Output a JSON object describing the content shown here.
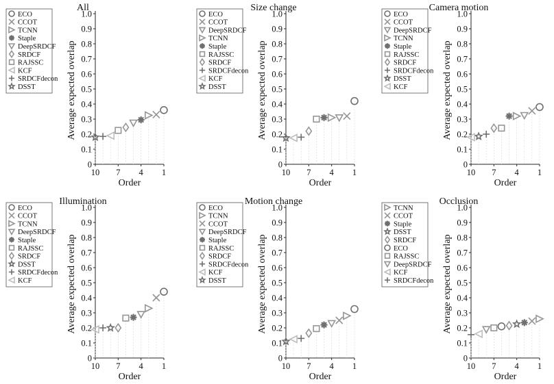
{
  "chart_data": [
    {
      "type": "scatter",
      "title": "All",
      "xlabel": "Order",
      "ylabel": "Average expected overlap",
      "ylim": [
        0,
        1
      ],
      "xlim": [
        10,
        1
      ],
      "xticks": [
        "10",
        "7",
        "4",
        "1"
      ],
      "yticks": [
        "0",
        "0.1",
        "0.2",
        "0.3",
        "0.4",
        "0.5",
        "0.6",
        "0.7",
        "0.8",
        "0.9",
        "1.0"
      ],
      "series": [
        {
          "name": "ECO",
          "marker": "circle",
          "shade": "dark",
          "x": 1,
          "y": 0.36
        },
        {
          "name": "CCOT",
          "marker": "x",
          "shade": "medium",
          "x": 2,
          "y": 0.33
        },
        {
          "name": "TCNN",
          "marker": "tri-right",
          "shade": "medium",
          "x": 3,
          "y": 0.325
        },
        {
          "name": "Staple",
          "marker": "asterisk",
          "shade": "dark",
          "x": 4,
          "y": 0.295
        },
        {
          "name": "DeepSRDCF",
          "marker": "tri-down",
          "shade": "medium",
          "x": 5,
          "y": 0.275
        },
        {
          "name": "SRDCF",
          "marker": "diamond",
          "shade": "medium",
          "x": 6,
          "y": 0.245
        },
        {
          "name": "RAJSSC",
          "marker": "square",
          "shade": "medium",
          "x": 7,
          "y": 0.225
        },
        {
          "name": "KCF",
          "marker": "tri-left",
          "shade": "light",
          "x": 8,
          "y": 0.19
        },
        {
          "name": "SRDCFdecon",
          "marker": "plus",
          "shade": "dark",
          "x": 9,
          "y": 0.185
        },
        {
          "name": "DSST",
          "marker": "star",
          "shade": "dark",
          "x": 10,
          "y": 0.18
        }
      ]
    },
    {
      "type": "scatter",
      "title": "Size change",
      "xlabel": "Order",
      "ylabel": "Average expected overlap",
      "ylim": [
        0,
        1
      ],
      "xlim": [
        10,
        1
      ],
      "xticks": [
        "10",
        "7",
        "4",
        "1"
      ],
      "yticks": [
        "0",
        "0.1",
        "0.2",
        "0.3",
        "0.4",
        "0.5",
        "0.6",
        "0.7",
        "0.8",
        "0.9",
        "1.0"
      ],
      "series": [
        {
          "name": "ECO",
          "marker": "circle",
          "shade": "dark",
          "x": 1,
          "y": 0.42
        },
        {
          "name": "CCOT",
          "marker": "x",
          "shade": "medium",
          "x": 2,
          "y": 0.32
        },
        {
          "name": "DeepSRDCF",
          "marker": "tri-down",
          "shade": "medium",
          "x": 3,
          "y": 0.31
        },
        {
          "name": "TCNN",
          "marker": "tri-right",
          "shade": "medium",
          "x": 4,
          "y": 0.31
        },
        {
          "name": "Staple",
          "marker": "asterisk",
          "shade": "dark",
          "x": 5,
          "y": 0.31
        },
        {
          "name": "RAJSSC",
          "marker": "square",
          "shade": "medium",
          "x": 6,
          "y": 0.3
        },
        {
          "name": "SRDCF",
          "marker": "diamond",
          "shade": "medium",
          "x": 7,
          "y": 0.22
        },
        {
          "name": "SRDCFdecon",
          "marker": "plus",
          "shade": "dark",
          "x": 8,
          "y": 0.18
        },
        {
          "name": "KCF",
          "marker": "tri-left",
          "shade": "light",
          "x": 9,
          "y": 0.175
        },
        {
          "name": "DSST",
          "marker": "star",
          "shade": "dark",
          "x": 10,
          "y": 0.175
        }
      ]
    },
    {
      "type": "scatter",
      "title": "Camera motion",
      "xlabel": "Order",
      "ylabel": "Average expected overlap",
      "ylim": [
        0,
        1
      ],
      "xlim": [
        10,
        1
      ],
      "xticks": [
        "10",
        "7",
        "4",
        "1"
      ],
      "yticks": [
        "0",
        "0.1",
        "0.2",
        "0.3",
        "0.4",
        "0.5",
        "0.6",
        "0.7",
        "0.8",
        "0.9",
        "1.0"
      ],
      "series": [
        {
          "name": "ECO",
          "marker": "circle",
          "shade": "dark",
          "x": 1,
          "y": 0.38
        },
        {
          "name": "CCOT",
          "marker": "x",
          "shade": "medium",
          "x": 2,
          "y": 0.355
        },
        {
          "name": "DeepSRDCF",
          "marker": "tri-down",
          "shade": "medium",
          "x": 3,
          "y": 0.325
        },
        {
          "name": "TCNN",
          "marker": "tri-right",
          "shade": "medium",
          "x": 4,
          "y": 0.32
        },
        {
          "name": "Staple",
          "marker": "asterisk",
          "shade": "dark",
          "x": 5,
          "y": 0.32
        },
        {
          "name": "RAJSSC",
          "marker": "square",
          "shade": "medium",
          "x": 6,
          "y": 0.24
        },
        {
          "name": "SRDCF",
          "marker": "diamond",
          "shade": "medium",
          "x": 7,
          "y": 0.24
        },
        {
          "name": "SRDCFdecon",
          "marker": "plus",
          "shade": "dark",
          "x": 8,
          "y": 0.2
        },
        {
          "name": "DSST",
          "marker": "star",
          "shade": "dark",
          "x": 9,
          "y": 0.185
        },
        {
          "name": "KCF",
          "marker": "tri-left",
          "shade": "light",
          "x": 10,
          "y": 0.18
        }
      ]
    },
    {
      "type": "scatter",
      "title": "Illumination",
      "xlabel": "Order",
      "ylabel": "Average expected overlap",
      "ylim": [
        0,
        1
      ],
      "xlim": [
        10,
        1
      ],
      "xticks": [
        "10",
        "7",
        "4",
        "1"
      ],
      "yticks": [
        "0",
        "0.1",
        "0.2",
        "0.3",
        "0.4",
        "0.5",
        "0.6",
        "0.7",
        "0.8",
        "0.9",
        "1.0"
      ],
      "series": [
        {
          "name": "ECO",
          "marker": "circle",
          "shade": "dark",
          "x": 1,
          "y": 0.44
        },
        {
          "name": "CCOT",
          "marker": "x",
          "shade": "medium",
          "x": 2,
          "y": 0.4
        },
        {
          "name": "TCNN",
          "marker": "tri-right",
          "shade": "medium",
          "x": 3,
          "y": 0.33
        },
        {
          "name": "DeepSRDCF",
          "marker": "tri-down",
          "shade": "medium",
          "x": 4,
          "y": 0.29
        },
        {
          "name": "Staple",
          "marker": "asterisk",
          "shade": "dark",
          "x": 5,
          "y": 0.27
        },
        {
          "name": "RAJSSC",
          "marker": "square",
          "shade": "medium",
          "x": 6,
          "y": 0.265
        },
        {
          "name": "SRDCF",
          "marker": "diamond",
          "shade": "medium",
          "x": 7,
          "y": 0.2
        },
        {
          "name": "DSST",
          "marker": "star",
          "shade": "dark",
          "x": 8,
          "y": 0.2
        },
        {
          "name": "SRDCFdecon",
          "marker": "plus",
          "shade": "dark",
          "x": 9,
          "y": 0.2
        },
        {
          "name": "KCF",
          "marker": "tri-left",
          "shade": "light",
          "x": 10,
          "y": 0.19
        }
      ]
    },
    {
      "type": "scatter",
      "title": "Motion change",
      "xlabel": "Order",
      "ylabel": "Average expected overlap",
      "ylim": [
        0,
        1
      ],
      "xlim": [
        10,
        1
      ],
      "xticks": [
        "10",
        "7",
        "4",
        "1"
      ],
      "yticks": [
        "0",
        "0.1",
        "0.2",
        "0.3",
        "0.4",
        "0.5",
        "0.6",
        "0.7",
        "0.8",
        "0.9",
        "1.0"
      ],
      "series": [
        {
          "name": "ECO",
          "marker": "circle",
          "shade": "dark",
          "x": 1,
          "y": 0.325
        },
        {
          "name": "TCNN",
          "marker": "tri-right",
          "shade": "medium",
          "x": 2,
          "y": 0.28
        },
        {
          "name": "CCOT",
          "marker": "x",
          "shade": "medium",
          "x": 3,
          "y": 0.25
        },
        {
          "name": "DeepSRDCF",
          "marker": "tri-down",
          "shade": "medium",
          "x": 4,
          "y": 0.23
        },
        {
          "name": "Staple",
          "marker": "asterisk",
          "shade": "dark",
          "x": 5,
          "y": 0.22
        },
        {
          "name": "RAJSSC",
          "marker": "square",
          "shade": "medium",
          "x": 6,
          "y": 0.195
        },
        {
          "name": "SRDCF",
          "marker": "diamond",
          "shade": "medium",
          "x": 7,
          "y": 0.165
        },
        {
          "name": "SRDCFdecon",
          "marker": "plus",
          "shade": "dark",
          "x": 8,
          "y": 0.13
        },
        {
          "name": "KCF",
          "marker": "tri-left",
          "shade": "light",
          "x": 9,
          "y": 0.125
        },
        {
          "name": "DSST",
          "marker": "star",
          "shade": "dark",
          "x": 10,
          "y": 0.11
        }
      ]
    },
    {
      "type": "scatter",
      "title": "Occlusion",
      "xlabel": "Order",
      "ylabel": "Average expected overlap",
      "ylim": [
        0,
        1
      ],
      "xlim": [
        10,
        1
      ],
      "xticks": [
        "10",
        "7",
        "4",
        "1"
      ],
      "yticks": [
        "0",
        "0.1",
        "0.2",
        "0.3",
        "0.4",
        "0.5",
        "0.6",
        "0.7",
        "0.8",
        "0.9",
        "1.0"
      ],
      "series": [
        {
          "name": "TCNN",
          "marker": "tri-right",
          "shade": "medium",
          "x": 1,
          "y": 0.26
        },
        {
          "name": "CCOT",
          "marker": "x",
          "shade": "medium",
          "x": 2,
          "y": 0.245
        },
        {
          "name": "Staple",
          "marker": "asterisk",
          "shade": "dark",
          "x": 3,
          "y": 0.235
        },
        {
          "name": "DSST",
          "marker": "star",
          "shade": "dark",
          "x": 4,
          "y": 0.225
        },
        {
          "name": "SRDCF",
          "marker": "diamond",
          "shade": "medium",
          "x": 5,
          "y": 0.215
        },
        {
          "name": "ECO",
          "marker": "circle",
          "shade": "dark",
          "x": 6,
          "y": 0.21
        },
        {
          "name": "RAJSSC",
          "marker": "square",
          "shade": "medium",
          "x": 7,
          "y": 0.2
        },
        {
          "name": "DeepSRDCF",
          "marker": "tri-down",
          "shade": "medium",
          "x": 8,
          "y": 0.19
        },
        {
          "name": "KCF",
          "marker": "tri-left",
          "shade": "light",
          "x": 9,
          "y": 0.16
        },
        {
          "name": "SRDCFdecon",
          "marker": "plus",
          "shade": "dark",
          "x": 10,
          "y": 0.155
        }
      ]
    }
  ],
  "colors": {
    "dark": "#6f6f6f",
    "medium": "#959595",
    "light": "#bdbdbd",
    "axis": "#222222",
    "grid": "#d6d6d6"
  }
}
